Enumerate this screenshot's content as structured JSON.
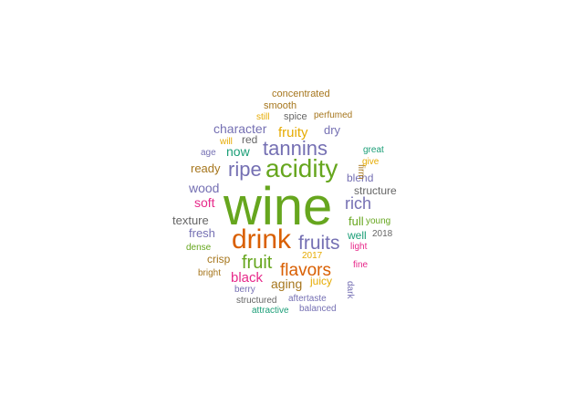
{
  "colors": {
    "green": "#66a61e",
    "orange": "#d95f02",
    "purple": "#7570b3",
    "teal": "#1b9e77",
    "magenta": "#e7298a",
    "gold": "#e6ab02",
    "brown": "#a6761d",
    "gray": "#666666"
  },
  "words": [
    {
      "text": "wine",
      "weight": 100,
      "color": "green"
    },
    {
      "text": "drink",
      "weight": 62,
      "color": "orange"
    },
    {
      "text": "acidity",
      "weight": 55,
      "color": "green"
    },
    {
      "text": "tannins",
      "weight": 44,
      "color": "purple"
    },
    {
      "text": "ripe",
      "weight": 44,
      "color": "purple"
    },
    {
      "text": "fruits",
      "weight": 40,
      "color": "purple"
    },
    {
      "text": "fruit",
      "weight": 38,
      "color": "green"
    },
    {
      "text": "flavors",
      "weight": 35,
      "color": "orange"
    },
    {
      "text": "rich",
      "weight": 32,
      "color": "purple"
    },
    {
      "text": "black",
      "weight": 28,
      "color": "magenta"
    },
    {
      "text": "aging",
      "weight": 27,
      "color": "brown"
    },
    {
      "text": "fruity",
      "weight": 27,
      "color": "gold"
    },
    {
      "text": "character",
      "weight": 25,
      "color": "purple"
    },
    {
      "text": "now",
      "weight": 25,
      "color": "teal"
    },
    {
      "text": "soft",
      "weight": 24,
      "color": "magenta"
    },
    {
      "text": "wood",
      "weight": 24,
      "color": "purple"
    },
    {
      "text": "ready",
      "weight": 23,
      "color": "brown"
    },
    {
      "text": "texture",
      "weight": 23,
      "color": "gray"
    },
    {
      "text": "red",
      "weight": 22,
      "color": "gray"
    },
    {
      "text": "dry",
      "weight": 22,
      "color": "purple"
    },
    {
      "text": "fresh",
      "weight": 22,
      "color": "purple"
    },
    {
      "text": "crisp",
      "weight": 21,
      "color": "brown"
    },
    {
      "text": "blend",
      "weight": 21,
      "color": "purple"
    },
    {
      "text": "full",
      "weight": 20,
      "color": "green"
    },
    {
      "text": "well",
      "weight": 20,
      "color": "teal"
    },
    {
      "text": "structure",
      "weight": 20,
      "color": "gray"
    },
    {
      "text": "juicy",
      "weight": 19,
      "color": "gold"
    },
    {
      "text": "spice",
      "weight": 19,
      "color": "gray"
    },
    {
      "text": "smooth",
      "weight": 19,
      "color": "brown"
    },
    {
      "text": "concentrated",
      "weight": 18,
      "color": "brown"
    },
    {
      "text": "perfumed",
      "weight": 18,
      "color": "brown"
    },
    {
      "text": "still",
      "weight": 18,
      "color": "gold"
    },
    {
      "text": "will",
      "weight": 18,
      "color": "gold"
    },
    {
      "text": "age",
      "weight": 17,
      "color": "purple"
    },
    {
      "text": "great",
      "weight": 17,
      "color": "teal"
    },
    {
      "text": "firm",
      "weight": 17,
      "color": "brown"
    },
    {
      "text": "give",
      "weight": 17,
      "color": "gold"
    },
    {
      "text": "young",
      "weight": 17,
      "color": "green"
    },
    {
      "text": "2018",
      "weight": 17,
      "color": "gray"
    },
    {
      "text": "light",
      "weight": 17,
      "color": "magenta"
    },
    {
      "text": "dark",
      "weight": 17,
      "color": "purple"
    },
    {
      "text": "fine",
      "weight": 16,
      "color": "magenta"
    },
    {
      "text": "2017",
      "weight": 16,
      "color": "gold"
    },
    {
      "text": "dense",
      "weight": 16,
      "color": "green"
    },
    {
      "text": "bright",
      "weight": 16,
      "color": "brown"
    },
    {
      "text": "berry",
      "weight": 16,
      "color": "purple"
    },
    {
      "text": "structured",
      "weight": 16,
      "color": "gray"
    },
    {
      "text": "aftertaste",
      "weight": 16,
      "color": "purple"
    },
    {
      "text": "attractive",
      "weight": 16,
      "color": "teal"
    },
    {
      "text": "balanced",
      "weight": 16,
      "color": "purple"
    }
  ]
}
